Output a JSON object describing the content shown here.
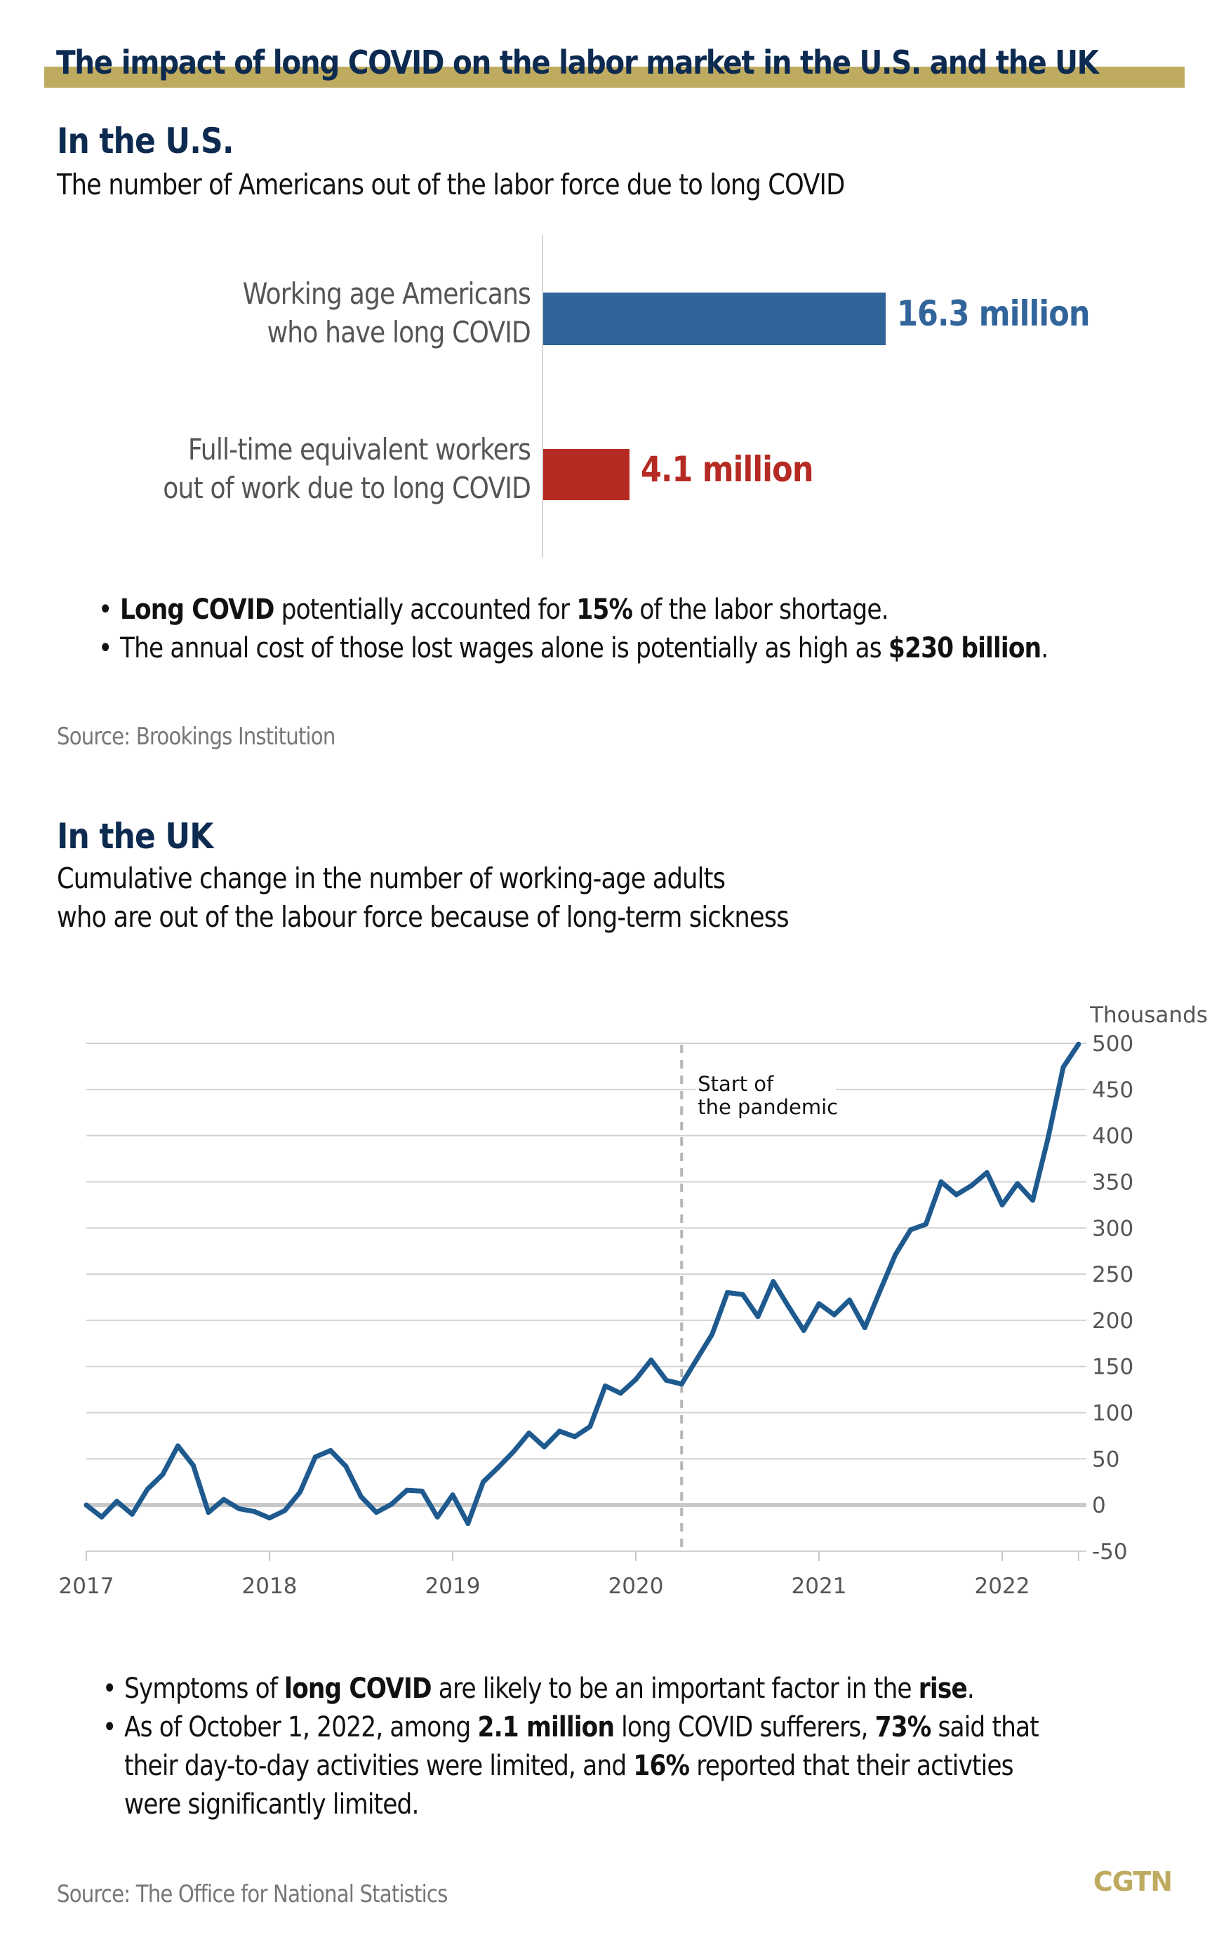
{
  "title": "The impact of long COVID on the labor market in the U.S. and the UK",
  "colors": {
    "title_band": "#bfab60",
    "heading": "#0d2b50",
    "us_bar_primary": "#31649a",
    "us_bar_secondary": "#b52a22",
    "uk_line": "#1f5a8f",
    "grid": "#cccccc",
    "logo": "#bfab60"
  },
  "us": {
    "heading": "In the U.S.",
    "subtitle": "The number of Americans out of the labor force due to long COVID",
    "bullets": [
      {
        "parts": [
          {
            "text": "Long COVID",
            "bold": true
          },
          {
            "text": " potentially accounted for ",
            "bold": false
          },
          {
            "text": "15%",
            "bold": true
          },
          {
            "text": " of the labor shortage.",
            "bold": false
          }
        ]
      },
      {
        "parts": [
          {
            "text": "The annual cost of those lost wages alone is potentially as high as ",
            "bold": false
          },
          {
            "text": "$230 billion",
            "bold": true
          },
          {
            "text": ".",
            "bold": false
          }
        ]
      }
    ],
    "source": "Source: Brookings Institution"
  },
  "uk": {
    "heading": "In the UK",
    "subtitle_line1": "Cumulative change in the number of working-age adults",
    "subtitle_line2": "who are out of the labour force because of long-term sickness",
    "bullets": [
      {
        "parts": [
          {
            "text": "Symptoms of ",
            "bold": false
          },
          {
            "text": "long COVID",
            "bold": true
          },
          {
            "text": " are likely to be an important factor in the ",
            "bold": false
          },
          {
            "text": "rise",
            "bold": true
          },
          {
            "text": ".",
            "bold": false
          }
        ]
      },
      {
        "parts": [
          {
            "text": "As of October 1, 2022, among ",
            "bold": false
          },
          {
            "text": "2.1 million",
            "bold": true
          },
          {
            "text": " long COVID sufferers, ",
            "bold": false
          },
          {
            "text": "73%",
            "bold": true
          },
          {
            "text": " said that",
            "bold": false
          }
        ]
      },
      {
        "parts": [
          {
            "text": "their day-to-day activities were limited, and ",
            "bold": false
          },
          {
            "text": "16%",
            "bold": true
          },
          {
            "text": " reported that their activties",
            "bold": false
          }
        ],
        "continuation": true
      },
      {
        "parts": [
          {
            "text": "were significantly limited.",
            "bold": false
          }
        ],
        "continuation": true
      }
    ],
    "source": "Source: The Office for National Statistics"
  },
  "logo": "CGTN",
  "chart_data": [
    {
      "type": "bar",
      "orientation": "horizontal",
      "title": "The number of Americans out of the labor force due to long COVID",
      "categories": [
        [
          "Working age Americans",
          "who have long COVID"
        ],
        [
          "Full-time equivalent workers",
          "out of work due to long COVID"
        ]
      ],
      "values": [
        16.3,
        4.1
      ],
      "value_labels": [
        "16.3 million",
        "4.1 million"
      ],
      "unit": "million",
      "xlim": [
        0,
        16.3
      ]
    },
    {
      "type": "line",
      "title": "Cumulative change in the number of working-age adults who are out of the labour force because of long-term sickness",
      "ylabel": "Thousands",
      "x_start": "2017-01",
      "x_frequency": "monthly",
      "x_ticks": [
        "2017",
        "2018",
        "2019",
        "2020",
        "2021",
        "2022",
        ""
      ],
      "x_tick_months": [
        0,
        12,
        24,
        36,
        48,
        60,
        65
      ],
      "y_ticks": [
        500,
        450,
        400,
        350,
        300,
        250,
        200,
        150,
        100,
        50,
        0,
        -50
      ],
      "ylim": [
        -50,
        500
      ],
      "y_axis_side": "right",
      "grid": true,
      "annotation": {
        "month_index": 39,
        "label_line1": "Start of",
        "label_line2": "the pandemic",
        "style": "dashed vertical line"
      },
      "series": [
        {
          "name": "Long-term sickness (cumulative change, thousands)",
          "values": [
            0,
            -13,
            4,
            -10,
            17,
            33,
            64,
            43,
            -8,
            6,
            -4,
            -7,
            -14,
            -6,
            14,
            52,
            59,
            42,
            9,
            -8,
            1,
            16,
            15,
            -13,
            11,
            -20,
            25,
            41,
            58,
            78,
            63,
            80,
            74,
            85,
            129,
            121,
            136,
            157,
            135,
            131,
            158,
            185,
            230,
            228,
            204,
            242,
            215,
            189,
            218,
            206,
            222,
            192,
            232,
            271,
            298,
            304,
            350,
            336,
            346,
            360,
            325,
            348,
            330,
            397,
            474,
            499
          ]
        }
      ]
    }
  ]
}
